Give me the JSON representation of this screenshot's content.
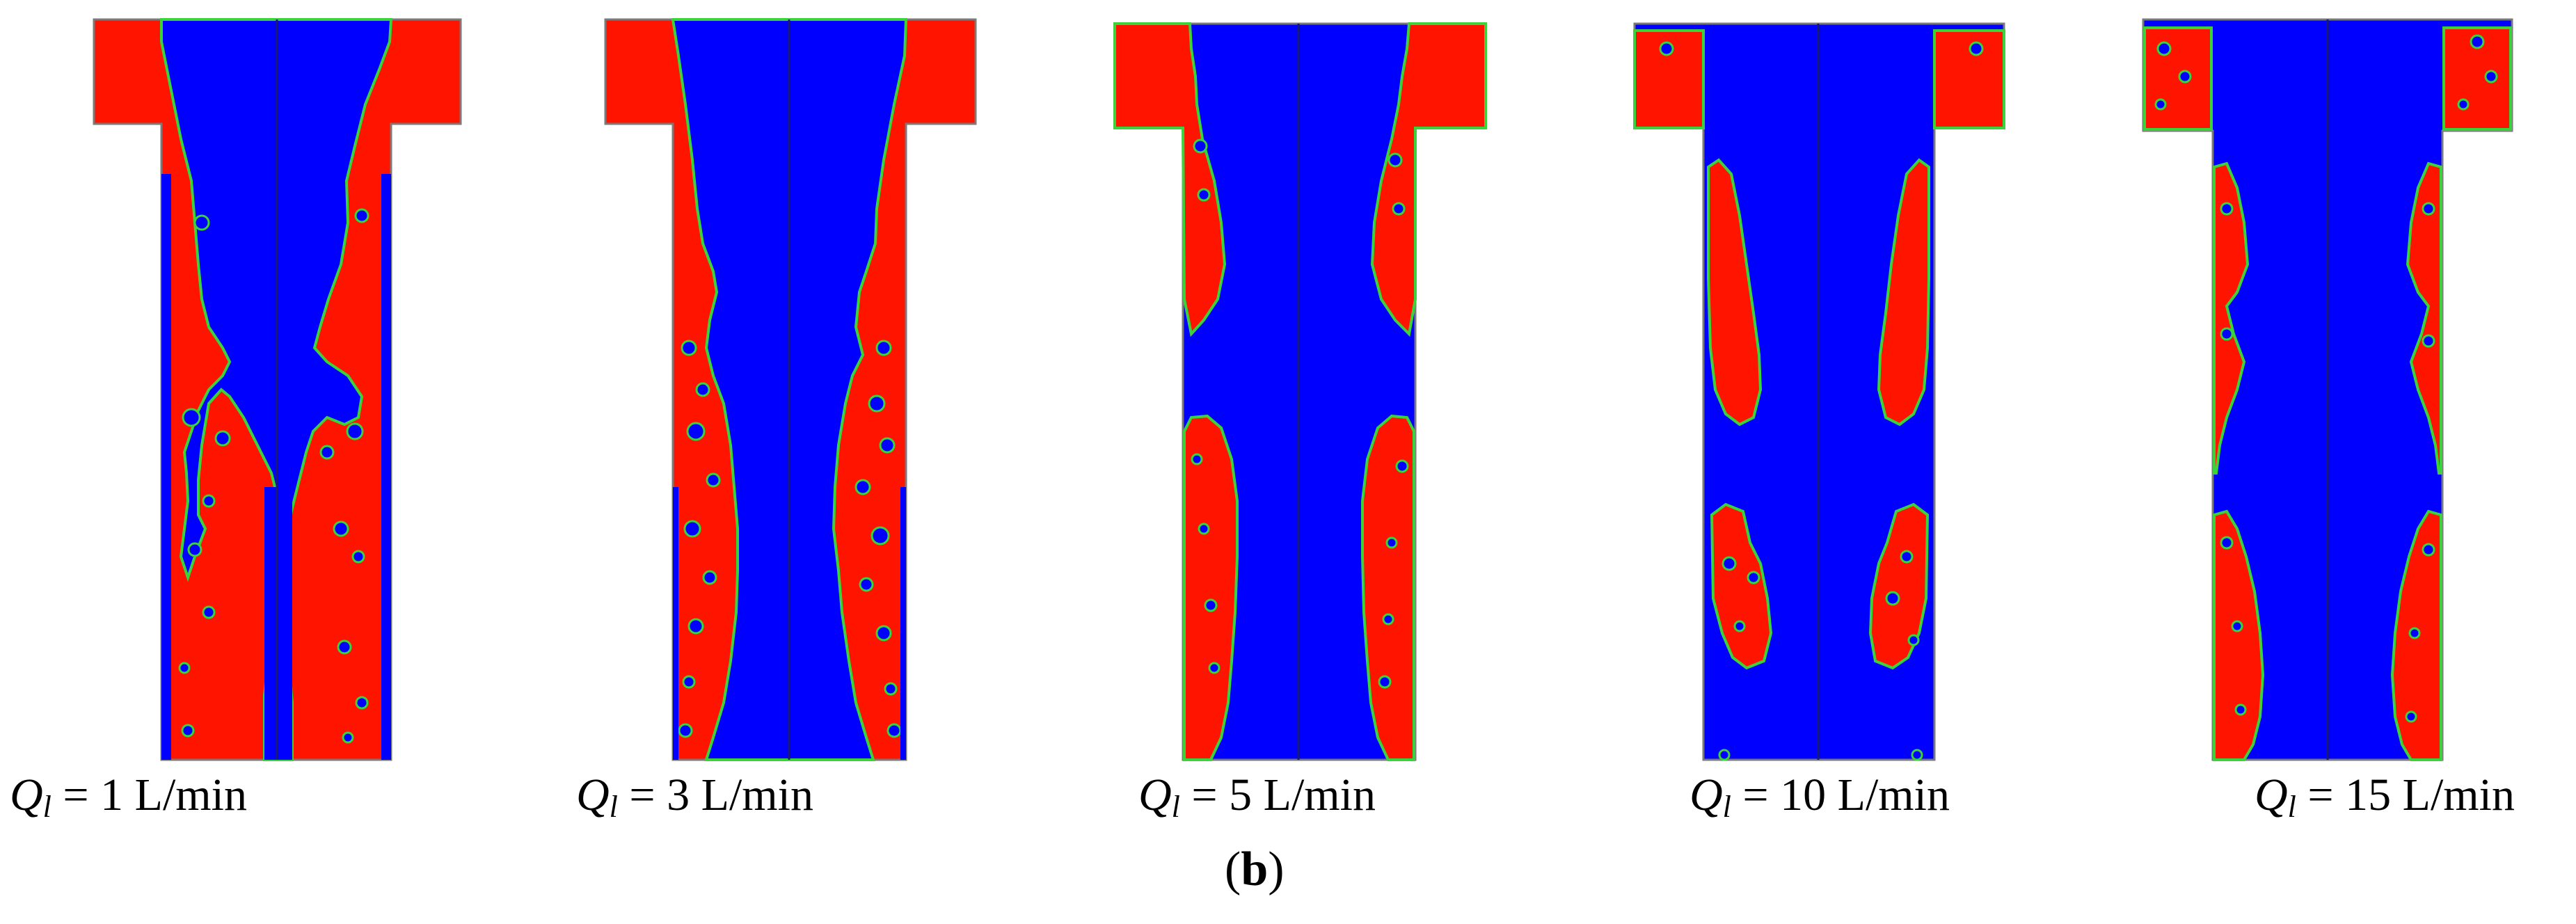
{
  "colors": {
    "liquid": "#ff1400",
    "gas": "#0000ff",
    "interface": "#3cd23c",
    "wall": "#7a7a7a",
    "divider": "#1a1a6e"
  },
  "panels": [
    {
      "symbol": "Q",
      "subscript": "l",
      "value_text": " = 1 L/min"
    },
    {
      "symbol": "Q",
      "subscript": "l",
      "value_text": " = 3 L/min"
    },
    {
      "symbol": "Q",
      "subscript": "l",
      "value_text": " = 5 L/min"
    },
    {
      "symbol": "Q",
      "subscript": "l",
      "value_text": " = 10 L/min"
    },
    {
      "symbol": "Q",
      "subscript": "l",
      "value_text": " = 15 L/min"
    }
  ],
  "caption": {
    "open": "(",
    "letter": "b",
    "close": ")"
  }
}
